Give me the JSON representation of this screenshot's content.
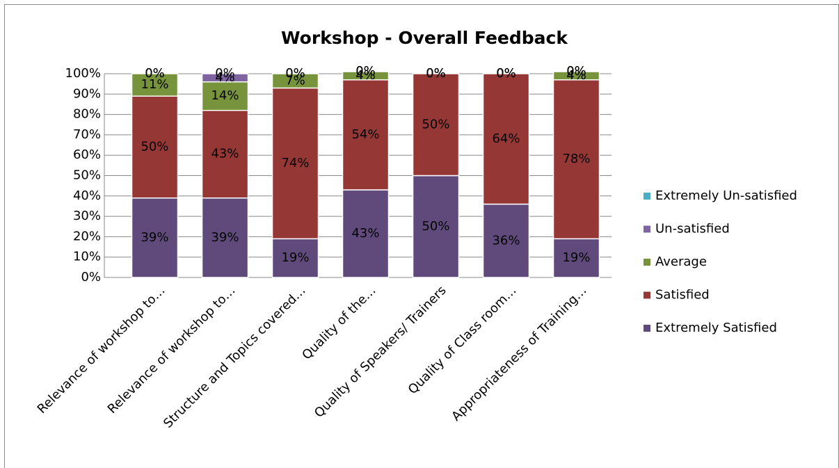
{
  "chart_data": {
    "type": "bar",
    "stacked": true,
    "title": "Workshop - Overall Feedback",
    "categories": [
      "Relevance of workshop to…",
      "Relevance of workshop to…",
      "Structure and Topics covered…",
      "Quality of the…",
      "Quality of Speakers/ Trainers",
      "Quality of Class room…",
      "Appropriateness of Training…"
    ],
    "series": [
      {
        "name": "Extremely Satisfied",
        "color": "#604a7b",
        "values": [
          39,
          39,
          19,
          43,
          50,
          36,
          19
        ],
        "value_labels": [
          "39%",
          "39%",
          "19%",
          "43%",
          "50%",
          "36%",
          "19%"
        ]
      },
      {
        "name": "Satisfied",
        "color": "#953735",
        "values": [
          50,
          43,
          74,
          54,
          50,
          64,
          78
        ],
        "value_labels": [
          "50%",
          "43%",
          "74%",
          "54%",
          "50%",
          "64%",
          "78%"
        ]
      },
      {
        "name": "Average",
        "color": "#77933c",
        "values": [
          11,
          14,
          7,
          4,
          0,
          0,
          4
        ],
        "value_labels": [
          "11%",
          "14%",
          "7%",
          "4%",
          "0%",
          "0%",
          "4%"
        ]
      },
      {
        "name": "Un-satisfied",
        "color": "#8064a2",
        "values": [
          0,
          4,
          0,
          0,
          0,
          0,
          0
        ],
        "value_labels": [
          "0%",
          "4%",
          "0%",
          "0%",
          "0%",
          "0%",
          "0%"
        ]
      },
      {
        "name": "Extremely Un-satisfied",
        "color": "#4bacc6",
        "values": [
          0,
          0,
          0,
          0,
          0,
          0,
          0
        ],
        "value_labels": [
          "0%",
          "0%",
          "0%",
          "0%",
          "0%",
          "0%",
          "0%"
        ]
      }
    ],
    "ylim": [
      0,
      100
    ],
    "yticks": [
      {
        "value": 0,
        "label": "0%"
      },
      {
        "value": 10,
        "label": "10%"
      },
      {
        "value": 20,
        "label": "20%"
      },
      {
        "value": 30,
        "label": "30%"
      },
      {
        "value": 40,
        "label": "40%"
      },
      {
        "value": 50,
        "label": "50%"
      },
      {
        "value": 60,
        "label": "60%"
      },
      {
        "value": 70,
        "label": "70%"
      },
      {
        "value": 80,
        "label": "80%"
      },
      {
        "value": 90,
        "label": "90%"
      },
      {
        "value": 100,
        "label": "100%"
      }
    ],
    "grid": true,
    "legend": "right"
  }
}
